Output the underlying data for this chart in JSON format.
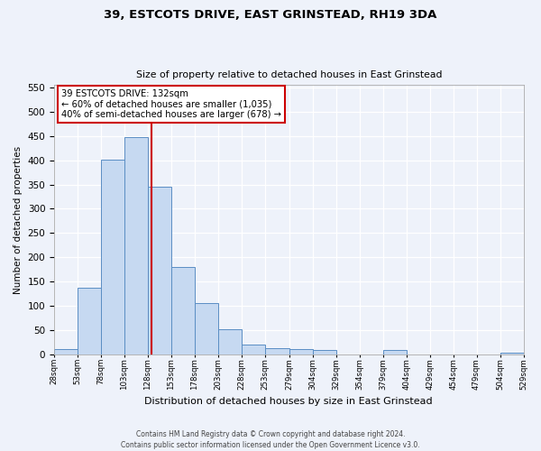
{
  "title": "39, ESTCOTS DRIVE, EAST GRINSTEAD, RH19 3DA",
  "subtitle": "Size of property relative to detached houses in East Grinstead",
  "xlabel": "Distribution of detached houses by size in East Grinstead",
  "ylabel": "Number of detached properties",
  "bin_edges": [
    28,
    53,
    78,
    103,
    128,
    153,
    178,
    203,
    228,
    253,
    279,
    304,
    329,
    354,
    379,
    404,
    429,
    454,
    479,
    504,
    529
  ],
  "bar_heights": [
    10,
    137,
    402,
    448,
    345,
    180,
    105,
    52,
    20,
    13,
    10,
    8,
    0,
    0,
    8,
    0,
    0,
    0,
    0,
    3
  ],
  "bar_color": "#c6d9f1",
  "bar_edge_color": "#5b8ec4",
  "property_value": 132,
  "vline_color": "#cc0000",
  "annotation_text_line1": "39 ESTCOTS DRIVE: 132sqm",
  "annotation_text_line2": "← 60% of detached houses are smaller (1,035)",
  "annotation_text_line3": "40% of semi-detached houses are larger (678) →",
  "annotation_box_color": "#cc0000",
  "ylim": [
    0,
    555
  ],
  "yticks": [
    0,
    50,
    100,
    150,
    200,
    250,
    300,
    350,
    400,
    450,
    500,
    550
  ],
  "background_color": "#eef2fa",
  "plot_bg_color": "#eef2fa",
  "tick_labels": [
    "28sqm",
    "53sqm",
    "78sqm",
    "103sqm",
    "128sqm",
    "153sqm",
    "178sqm",
    "203sqm",
    "228sqm",
    "253sqm",
    "279sqm",
    "304sqm",
    "329sqm",
    "354sqm",
    "379sqm",
    "404sqm",
    "429sqm",
    "454sqm",
    "479sqm",
    "504sqm",
    "529sqm"
  ],
  "footer_line1": "Contains HM Land Registry data © Crown copyright and database right 2024.",
  "footer_line2": "Contains public sector information licensed under the Open Government Licence v3.0."
}
